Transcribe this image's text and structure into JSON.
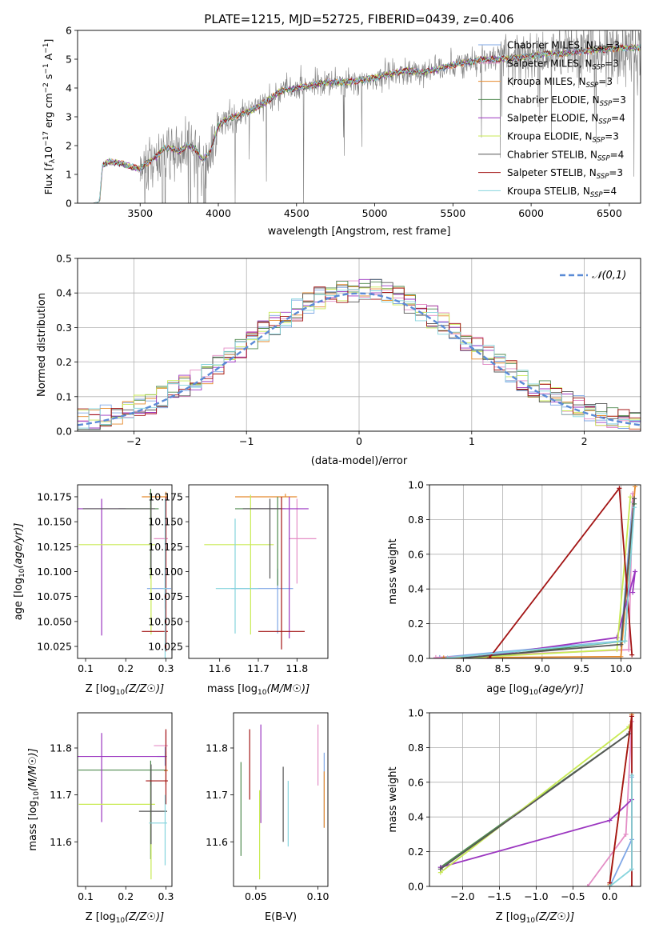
{
  "figure": {
    "title": "PLATE=1215, MJD=52725, FIBERID=0439, z=0.406"
  },
  "model_colors": {
    "Chabrier MILES": "#7fa7e6",
    "Salpeter MILES": "#e48ec6",
    "Kroupa MILES": "#e58a2d",
    "Chabrier ELODIE": "#4f8a4f",
    "Salpeter ELODIE": "#9b36c0",
    "Kroupa ELODIE": "#c9ea55",
    "Chabrier STELIB": "#555555",
    "Salpeter STELIB": "#a31515",
    "Kroupa STELIB": "#85d4dd"
  },
  "chart_data": [
    {
      "id": "spectrum",
      "type": "line",
      "xlabel": "wavelength [Angstrom, rest frame]",
      "ylabel": "Flux [f_λ 10^-17 erg cm^-2 s^-1 A^-1]",
      "xlim": [
        3100,
        6700
      ],
      "ylim": [
        0,
        6
      ],
      "xticks": [
        3500,
        4000,
        4500,
        5000,
        5500,
        6000,
        6500
      ],
      "yticks": [
        0,
        1,
        2,
        3,
        4,
        5,
        6
      ],
      "legend_position": "right",
      "legend": [
        {
          "label": "Chabrier MILES, N",
          "sub": "SSP",
          "tail": "=3",
          "key": "Chabrier MILES"
        },
        {
          "label": "Salpeter MILES, N",
          "sub": "SSP",
          "tail": "=3",
          "key": "Salpeter MILES"
        },
        {
          "label": "Kroupa MILES, N",
          "sub": "SSP",
          "tail": "=3",
          "key": "Kroupa MILES"
        },
        {
          "label": "Chabrier ELODIE, N",
          "sub": "SSP",
          "tail": "=3",
          "key": "Chabrier ELODIE"
        },
        {
          "label": "Salpeter ELODIE, N",
          "sub": "SSP",
          "tail": "=4",
          "key": "Salpeter ELODIE"
        },
        {
          "label": "Kroupa ELODIE, N",
          "sub": "SSP",
          "tail": "=3",
          "key": "Kroupa ELODIE"
        },
        {
          "label": "Chabrier STELIB, N",
          "sub": "SSP",
          "tail": "=4",
          "key": "Chabrier STELIB"
        },
        {
          "label": "Salpeter STELIB, N",
          "sub": "SSP",
          "tail": "=3",
          "key": "Salpeter STELIB"
        },
        {
          "label": "Kroupa STELIB, N",
          "sub": "SSP",
          "tail": "=4",
          "key": "Kroupa STELIB"
        }
      ],
      "continuum": {
        "x": [
          3200,
          3240,
          3260,
          3300,
          3350,
          3400,
          3450,
          3500,
          3550,
          3600,
          3650,
          3700,
          3750,
          3800,
          3850,
          3900,
          3950,
          4000,
          4050,
          4100,
          4150,
          4200,
          4300,
          4400,
          4500,
          4600,
          4700,
          4800,
          4900,
          5000,
          5100,
          5200,
          5300,
          5400,
          5500,
          5600,
          5700,
          5800,
          5900,
          6000,
          6100,
          6200,
          6300,
          6400,
          6500,
          6600
        ],
        "y": [
          0,
          0.05,
          1.3,
          1.45,
          1.4,
          1.35,
          1.25,
          1.2,
          1.4,
          1.6,
          1.9,
          1.9,
          1.8,
          2.0,
          1.9,
          1.5,
          1.8,
          2.7,
          2.9,
          3.0,
          3.1,
          3.2,
          3.5,
          3.9,
          4.0,
          4.1,
          4.2,
          4.2,
          4.25,
          4.35,
          4.5,
          4.6,
          4.55,
          4.65,
          4.8,
          4.9,
          5.0,
          5.0,
          5.05,
          5.1,
          5.2,
          5.2,
          5.25,
          5.3,
          5.35,
          5.4
        ]
      },
      "data_noise_start": 3500
    },
    {
      "id": "residuals",
      "type": "bar",
      "xlabel": "(data-model)/error",
      "ylabel": "Normed distribution",
      "xlim": [
        -2.5,
        2.5
      ],
      "ylim": [
        0,
        0.5
      ],
      "xticks": [
        -2,
        -1,
        0,
        1,
        2
      ],
      "yticks": [
        0.0,
        0.1,
        0.2,
        0.3,
        0.4,
        0.5
      ],
      "bin_width": 0.1,
      "reference_curve": {
        "label": "𝒩(0,1)",
        "mean": 0,
        "sigma": 1,
        "color": "#5b8bd6"
      },
      "legend_position": "top-right",
      "grid": true
    },
    {
      "id": "age_vs_Z",
      "type": "scatter",
      "xlabel": "Z [log10(Z/Z☉)]",
      "ylabel": "age  [log10(age/yr)]",
      "xlim": [
        0.08,
        0.315
      ],
      "ylim": [
        10.013,
        10.187
      ],
      "xticks": [
        0.1,
        0.2,
        0.3
      ],
      "yticks": [
        10.025,
        10.05,
        10.075,
        10.1,
        10.125,
        10.15,
        10.175
      ],
      "points": [
        {
          "key": "Chabrier MILES",
          "x": 0.298,
          "y": 10.083,
          "xerr": [
            0.045,
            0.015
          ],
          "yerr": [
            0.02,
            0.02
          ]
        },
        {
          "key": "Salpeter MILES",
          "x": 0.3,
          "y": 10.133,
          "xerr": [
            0.03,
            0.005
          ],
          "yerr": [
            0.04,
            0.04
          ]
        },
        {
          "key": "Kroupa MILES",
          "x": 0.3,
          "y": 10.175,
          "xerr": [
            0.06,
            0.005
          ],
          "yerr": [
            0.0,
            0.005
          ]
        },
        {
          "key": "Chabrier ELODIE",
          "x": 0.262,
          "y": 10.163,
          "xerr": [
            0.08,
            0.02
          ],
          "yerr": [
            0.07,
            0.02
          ]
        },
        {
          "key": "Salpeter ELODIE",
          "x": 0.14,
          "y": 10.163,
          "xerr": [
            0.07,
            0.06
          ],
          "yerr": [
            0.127,
            0.01
          ]
        },
        {
          "key": "Kroupa ELODIE",
          "x": 0.263,
          "y": 10.127,
          "xerr": [
            0.18,
            0.01
          ],
          "yerr": [
            0.09,
            0.04
          ]
        },
        {
          "key": "Chabrier STELIB",
          "x": 0.263,
          "y": 10.163,
          "xerr": [
            0.17,
            0.01
          ],
          "yerr": [
            0.06,
            0.01
          ]
        },
        {
          "key": "Salpeter STELIB",
          "x": 0.3,
          "y": 10.04,
          "xerr": [
            0.06,
            0.005
          ],
          "yerr": [
            0.02,
            0.135
          ]
        },
        {
          "key": "Kroupa STELIB",
          "x": 0.298,
          "y": 10.083,
          "xerr": [
            0.005,
            0.005
          ],
          "yerr": [
            0.07,
            0.09
          ]
        }
      ]
    },
    {
      "id": "age_vs_mass",
      "type": "scatter",
      "xlabel": "mass [log10(M/M☉)]",
      "ylabel": "",
      "xlim": [
        11.52,
        11.88
      ],
      "ylim": [
        10.013,
        10.187
      ],
      "xticks": [
        11.6,
        11.7,
        11.8
      ],
      "yticks": [
        10.025,
        10.05,
        10.075,
        10.1,
        10.125,
        10.15,
        10.175
      ],
      "points": [
        {
          "key": "Chabrier MILES",
          "x": 11.75,
          "y": 10.083,
          "xerr": [
            0.12,
            0.04
          ],
          "yerr": [
            0.045,
            0.02
          ]
        },
        {
          "key": "Salpeter MILES",
          "x": 11.8,
          "y": 10.133,
          "xerr": [
            0.02,
            0.05
          ],
          "yerr": [
            0.045,
            0.04
          ]
        },
        {
          "key": "Kroupa MILES",
          "x": 11.77,
          "y": 10.175,
          "xerr": [
            0.13,
            0.03
          ],
          "yerr": [
            0.0,
            0.003
          ]
        },
        {
          "key": "Chabrier ELODIE",
          "x": 11.75,
          "y": 10.163,
          "xerr": [
            0.11,
            0.02
          ],
          "yerr": [
            0.077,
            0.012
          ]
        },
        {
          "key": "Salpeter ELODIE",
          "x": 11.78,
          "y": 10.163,
          "xerr": [
            0.1,
            0.05
          ],
          "yerr": [
            0.13,
            0.012
          ]
        },
        {
          "key": "Kroupa ELODIE",
          "x": 11.68,
          "y": 10.127,
          "xerr": [
            0.12,
            0.06
          ],
          "yerr": [
            0.09,
            0.05
          ]
        },
        {
          "key": "Chabrier STELIB",
          "x": 11.73,
          "y": 10.163,
          "xerr": [
            0.07,
            0.03
          ],
          "yerr": [
            0.07,
            0.01
          ]
        },
        {
          "key": "Salpeter STELIB",
          "x": 11.76,
          "y": 10.04,
          "xerr": [
            0.06,
            0.06
          ],
          "yerr": [
            0.018,
            0.135
          ]
        },
        {
          "key": "Kroupa STELIB",
          "x": 11.64,
          "y": 10.083,
          "xerr": [
            0.05,
            0.06
          ],
          "yerr": [
            0.045,
            0.07
          ]
        }
      ]
    },
    {
      "id": "mass_weight_vs_age",
      "type": "line",
      "xlabel": "age  [log10(age/yr)]",
      "ylabel": "mass weight",
      "xlim": [
        7.57,
        10.25
      ],
      "ylim": [
        0,
        1
      ],
      "xticks": [
        8.0,
        8.5,
        9.0,
        9.5,
        10.0
      ],
      "yticks": [
        0.0,
        0.2,
        0.4,
        0.6,
        0.8,
        1.0
      ],
      "grid": true,
      "series": [
        {
          "key": "Chabrier MILES",
          "x": [
            7.7,
            10.0,
            10.15
          ],
          "y": [
            0.005,
            0.1,
            0.9
          ]
        },
        {
          "key": "Salpeter MILES",
          "x": [
            7.65,
            10.1,
            10.15
          ],
          "y": [
            0.005,
            0.05,
            0.95
          ]
        },
        {
          "key": "Kroupa MILES",
          "x": [
            7.75,
            10.0,
            10.18
          ],
          "y": [
            0.003,
            0.01,
            0.99
          ]
        },
        {
          "key": "Chabrier ELODIE",
          "x": [
            8.2,
            10.05,
            10.17
          ],
          "y": [
            0.005,
            0.1,
            0.89
          ]
        },
        {
          "key": "Salpeter ELODIE",
          "x": [
            8.1,
            9.95,
            10.18,
            10.15
          ],
          "y": [
            0.003,
            0.12,
            0.5,
            0.38
          ]
        },
        {
          "key": "Kroupa ELODIE",
          "x": [
            8.1,
            9.95,
            10.12
          ],
          "y": [
            0.005,
            0.05,
            0.93
          ]
        },
        {
          "key": "Chabrier STELIB",
          "x": [
            8.0,
            10.0,
            10.17
          ],
          "y": [
            0.003,
            0.08,
            0.92
          ]
        },
        {
          "key": "Salpeter STELIB",
          "x": [
            8.33,
            9.98,
            10.14
          ],
          "y": [
            0.003,
            0.98,
            0.02
          ]
        },
        {
          "key": "Kroupa STELIB",
          "x": [
            7.8,
            10.05,
            10.17
          ],
          "y": [
            0.003,
            0.1,
            0.87
          ]
        }
      ]
    },
    {
      "id": "mass_vs_Z",
      "type": "scatter",
      "xlabel": "Z [log10(Z/Z☉)]",
      "ylabel": "mass [log10(M/M☉)]",
      "xlim": [
        0.08,
        0.315
      ],
      "ylim": [
        11.505,
        11.875
      ],
      "xticks": [
        0.1,
        0.2,
        0.3
      ],
      "yticks": [
        11.6,
        11.7,
        11.8
      ],
      "points": [
        {
          "key": "Chabrier MILES",
          "x": 0.298,
          "y": 11.782,
          "xerr": [
            0.02,
            0.005
          ],
          "yerr": [
            0.02,
            0.02
          ]
        },
        {
          "key": "Salpeter MILES",
          "x": 0.3,
          "y": 11.805,
          "xerr": [
            0.03,
            0.005
          ],
          "yerr": [
            0.03,
            0.03
          ]
        },
        {
          "key": "Kroupa MILES",
          "x": 0.3,
          "y": 11.752,
          "xerr": [
            0.005,
            0.005
          ],
          "yerr": [
            0.03,
            0.04
          ]
        },
        {
          "key": "Chabrier ELODIE",
          "x": 0.262,
          "y": 11.753,
          "xerr": [
            0.18,
            0.04
          ],
          "yerr": [
            0.19,
            0.02
          ]
        },
        {
          "key": "Salpeter ELODIE",
          "x": 0.14,
          "y": 11.782,
          "xerr": [
            0.06,
            0.16
          ],
          "yerr": [
            0.14,
            0.05
          ]
        },
        {
          "key": "Kroupa ELODIE",
          "x": 0.263,
          "y": 11.68,
          "xerr": [
            0.18,
            0.01
          ],
          "yerr": [
            0.16,
            0.04
          ]
        },
        {
          "key": "Chabrier STELIB",
          "x": 0.263,
          "y": 11.665,
          "xerr": [
            0.03,
            0.04
          ],
          "yerr": [
            0.07,
            0.1
          ]
        },
        {
          "key": "Salpeter STELIB",
          "x": 0.3,
          "y": 11.73,
          "xerr": [
            0.05,
            0.005
          ],
          "yerr": [
            0.05,
            0.11
          ]
        },
        {
          "key": "Kroupa STELIB",
          "x": 0.298,
          "y": 11.64,
          "xerr": [
            0.04,
            0.005
          ],
          "yerr": [
            0.09,
            0.06
          ]
        }
      ]
    },
    {
      "id": "mass_vs_EBV",
      "type": "scatter",
      "xlabel": "E(B-V)",
      "ylabel": "",
      "xlim": [
        0.032,
        0.108
      ],
      "ylim": [
        11.505,
        11.875
      ],
      "xticks": [
        0.05,
        0.1
      ],
      "yticks": [
        11.6,
        11.7,
        11.8
      ],
      "points": [
        {
          "key": "Chabrier MILES",
          "x": 0.105,
          "y": 11.72,
          "xerr": [
            0,
            0
          ],
          "yerr": [
            0.09,
            0.07
          ]
        },
        {
          "key": "Salpeter MILES",
          "x": 0.1,
          "y": 11.79,
          "xerr": [
            0,
            0
          ],
          "yerr": [
            0.07,
            0.06
          ]
        },
        {
          "key": "Kroupa MILES",
          "x": 0.105,
          "y": 11.69,
          "xerr": [
            0,
            0
          ],
          "yerr": [
            0.06,
            0.06
          ]
        },
        {
          "key": "Chabrier ELODIE",
          "x": 0.038,
          "y": 11.67,
          "xerr": [
            0,
            0
          ],
          "yerr": [
            0.1,
            0.1
          ]
        },
        {
          "key": "Salpeter ELODIE",
          "x": 0.054,
          "y": 11.74,
          "xerr": [
            0,
            0
          ],
          "yerr": [
            0.1,
            0.11
          ]
        },
        {
          "key": "Kroupa ELODIE",
          "x": 0.053,
          "y": 11.62,
          "xerr": [
            0,
            0
          ],
          "yerr": [
            0.1,
            0.09
          ]
        },
        {
          "key": "Chabrier STELIB",
          "x": 0.072,
          "y": 11.68,
          "xerr": [
            0,
            0
          ],
          "yerr": [
            0.08,
            0.08
          ]
        },
        {
          "key": "Salpeter STELIB",
          "x": 0.045,
          "y": 11.77,
          "xerr": [
            0,
            0
          ],
          "yerr": [
            0.08,
            0.07
          ]
        },
        {
          "key": "Kroupa STELIB",
          "x": 0.076,
          "y": 11.66,
          "xerr": [
            0,
            0
          ],
          "yerr": [
            0.07,
            0.07
          ]
        }
      ]
    },
    {
      "id": "mass_weight_vs_Z",
      "type": "line",
      "xlabel": "Z [log10(Z/Z☉)]",
      "ylabel": "mass weight",
      "xlim": [
        -2.45,
        0.42
      ],
      "ylim": [
        0,
        1
      ],
      "xticks": [
        -2.0,
        -1.5,
        -1.0,
        -0.5,
        0.0
      ],
      "yticks": [
        0.0,
        0.2,
        0.4,
        0.6,
        0.8,
        1.0
      ],
      "grid": true,
      "series": [
        {
          "key": "Chabrier MILES",
          "x": [
            0.0,
            0.3,
            0.3
          ],
          "y": [
            0.0,
            0.27,
            0.63
          ]
        },
        {
          "key": "Salpeter MILES",
          "x": [
            -0.3,
            0.22,
            0.3
          ],
          "y": [
            0.0,
            0.3,
            0.95
          ]
        },
        {
          "key": "Kroupa MILES",
          "x": [
            0.0,
            0.3
          ],
          "y": [
            0.01,
            0.99
          ]
        },
        {
          "key": "Chabrier ELODIE",
          "x": [
            -2.3,
            0.26
          ],
          "y": [
            0.11,
            0.88
          ]
        },
        {
          "key": "Salpeter ELODIE",
          "x": [
            -2.3,
            0.0,
            0.3
          ],
          "y": [
            0.11,
            0.38,
            0.5
          ]
        },
        {
          "key": "Kroupa ELODIE",
          "x": [
            -2.3,
            0.26
          ],
          "y": [
            0.08,
            0.92
          ]
        },
        {
          "key": "Chabrier STELIB",
          "x": [
            -2.3,
            0.26
          ],
          "y": [
            0.1,
            0.88
          ]
        },
        {
          "key": "Salpeter STELIB",
          "x": [
            0.0,
            0.3,
            0.3
          ],
          "y": [
            0.02,
            0.98,
            0.0
          ]
        },
        {
          "key": "Kroupa STELIB",
          "x": [
            0.0,
            0.3,
            0.3
          ],
          "y": [
            0.0,
            0.1,
            0.64
          ]
        }
      ]
    }
  ]
}
